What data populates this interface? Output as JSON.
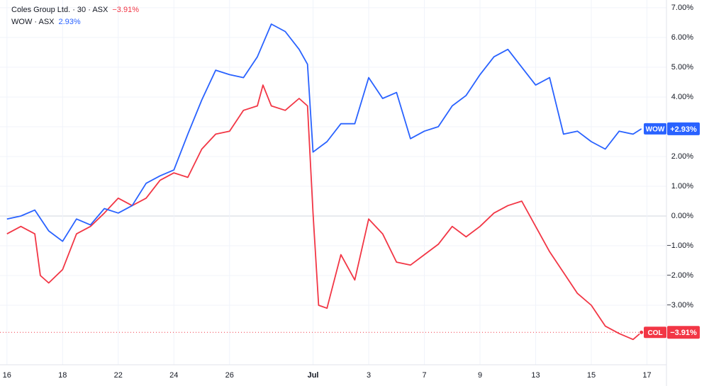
{
  "chart_data": {
    "type": "line",
    "xlim": [
      -0.25,
      23.7
    ],
    "xticks": [
      {
        "value": 0,
        "label": "16"
      },
      {
        "value": 2,
        "label": "18"
      },
      {
        "value": 4,
        "label": "22"
      },
      {
        "value": 6,
        "label": "24"
      },
      {
        "value": 8,
        "label": "26"
      },
      {
        "value": 11,
        "label": "Jul"
      },
      {
        "value": 13,
        "label": "3"
      },
      {
        "value": 15,
        "label": "7"
      },
      {
        "value": 17,
        "label": "9"
      },
      {
        "value": 19,
        "label": "13"
      },
      {
        "value": 21,
        "label": "15"
      },
      {
        "value": 23,
        "label": "17"
      }
    ],
    "ylim": [
      -5,
      7.26
    ],
    "yticks": [
      {
        "value": -3,
        "label": "−3.00%"
      },
      {
        "value": -2,
        "label": "−2.00%"
      },
      {
        "value": -1,
        "label": "−1.00%"
      },
      {
        "value": 0,
        "label": "0.00%"
      },
      {
        "value": 1,
        "label": "1.00%"
      },
      {
        "value": 2,
        "label": "2.00%"
      },
      {
        "value": 3,
        "label": "3.00%"
      },
      {
        "value": 4,
        "label": "4.00%"
      },
      {
        "value": 5,
        "label": "5.00%"
      },
      {
        "value": 6,
        "label": "6.00%"
      },
      {
        "value": 7,
        "label": "7.00%"
      }
    ],
    "grid": true,
    "series": [
      {
        "name": "Coles Group Ltd. · 30 · ASX",
        "symbol": "COL",
        "color": "#f23645",
        "value_label": "−3.91%",
        "badge_label": "−3.91%",
        "x": [
          0,
          0.5,
          1,
          1.2,
          1.5,
          2,
          2.5,
          3,
          3.5,
          4,
          4.5,
          5,
          5.5,
          6,
          6.5,
          7,
          7.5,
          8,
          8.5,
          9,
          9.2,
          9.5,
          10,
          10.5,
          10.8,
          11,
          11.2,
          11.5,
          12,
          12.5,
          13,
          13.5,
          14,
          14.5,
          15,
          15.5,
          16,
          16.5,
          17,
          17.5,
          18,
          18.5,
          19,
          19.5,
          20,
          20.5,
          21,
          21.5,
          22,
          22.5,
          22.8
        ],
        "values": [
          -0.6,
          -0.35,
          -0.6,
          -2.0,
          -2.25,
          -1.8,
          -0.6,
          -0.35,
          0.1,
          0.6,
          0.35,
          0.6,
          1.2,
          1.45,
          1.3,
          2.25,
          2.75,
          2.85,
          3.55,
          3.7,
          4.4,
          3.7,
          3.55,
          3.95,
          3.7,
          0.1,
          -3.0,
          -3.1,
          -1.3,
          -2.15,
          -0.1,
          -0.6,
          -1.55,
          -1.65,
          -1.3,
          -0.95,
          -0.35,
          -0.7,
          -0.35,
          0.1,
          0.35,
          0.5,
          -0.35,
          -1.2,
          -1.9,
          -2.6,
          -3.0,
          -3.7,
          -3.95,
          -4.15,
          -3.91
        ]
      },
      {
        "name": "WOW · ASX",
        "symbol": "WOW",
        "color": "#2962ff",
        "value_label": "2.93%",
        "badge_label": "+2.93%",
        "x": [
          0,
          0.5,
          1,
          1.5,
          2,
          2.5,
          3,
          3.5,
          4,
          4.5,
          5,
          5.5,
          6,
          6.5,
          7,
          7.5,
          8,
          8.5,
          9,
          9.5,
          10,
          10.5,
          10.8,
          11,
          11.5,
          12,
          12.5,
          13,
          13.5,
          14,
          14.5,
          15,
          15.5,
          16,
          16.5,
          17,
          17.5,
          18,
          18.5,
          19,
          19.5,
          20,
          20.5,
          21,
          21.5,
          22,
          22.5,
          22.8
        ],
        "values": [
          -0.1,
          0.0,
          0.2,
          -0.5,
          -0.85,
          -0.1,
          -0.3,
          0.25,
          0.1,
          0.35,
          1.1,
          1.35,
          1.55,
          2.75,
          3.9,
          4.9,
          4.75,
          4.65,
          5.35,
          6.45,
          6.2,
          5.6,
          5.1,
          2.15,
          2.5,
          3.1,
          3.1,
          4.65,
          3.95,
          4.15,
          2.6,
          2.85,
          3.0,
          3.7,
          4.05,
          4.75,
          5.35,
          5.6,
          5.0,
          4.4,
          4.65,
          2.75,
          2.85,
          2.5,
          2.25,
          2.85,
          2.75,
          2.93
        ]
      }
    ]
  }
}
